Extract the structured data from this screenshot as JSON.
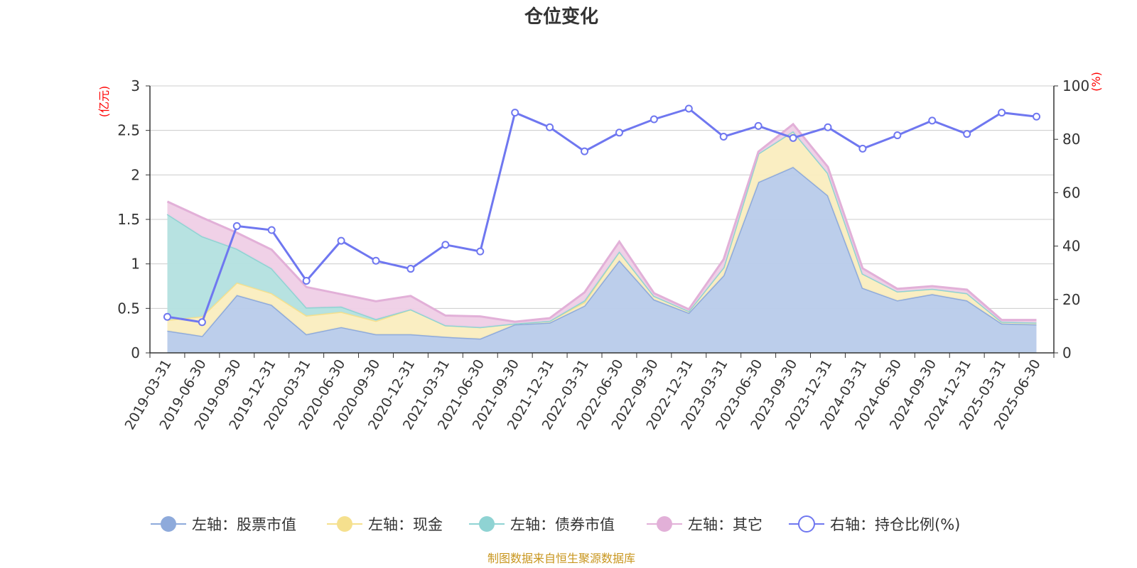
{
  "chart_data": {
    "type": "area",
    "title": "仓位变化",
    "left_unit": "(亿元)",
    "right_unit": "(%)",
    "source": "制图数据来自恒生聚源数据库",
    "categories": [
      "2019-03-31",
      "2019-06-30",
      "2019-09-30",
      "2019-12-31",
      "2020-03-31",
      "2020-06-30",
      "2020-09-30",
      "2020-12-31",
      "2021-03-31",
      "2021-06-30",
      "2021-09-30",
      "2021-12-31",
      "2022-03-31",
      "2022-06-30",
      "2022-09-30",
      "2022-12-31",
      "2023-03-31",
      "2023-06-30",
      "2023-09-30",
      "2023-12-31",
      "2024-03-31",
      "2024-06-30",
      "2024-09-30",
      "2024-12-31",
      "2025-03-31",
      "2025-06-30"
    ],
    "left_axis": {
      "min": 0,
      "max": 3,
      "ticks": [
        "0",
        "0.5",
        "1",
        "1.5",
        "2",
        "2.5",
        "3"
      ]
    },
    "right_axis": {
      "min": 0,
      "max": 100,
      "ticks": [
        "0",
        "20",
        "40",
        "60",
        "80",
        "100"
      ]
    },
    "grid": true,
    "legend_position": "bottom",
    "series": [
      {
        "name": "左轴：股票市值",
        "axis": "left",
        "kind": "area",
        "color": "#8eaadb",
        "fill": "#b8cbea",
        "values": [
          0.25,
          0.19,
          0.65,
          0.54,
          0.21,
          0.29,
          0.21,
          0.21,
          0.18,
          0.16,
          0.32,
          0.34,
          0.53,
          1.04,
          0.6,
          0.45,
          0.87,
          1.92,
          2.09,
          1.77,
          0.73,
          0.59,
          0.66,
          0.59,
          0.33,
          0.32
        ]
      },
      {
        "name": "左轴：现金",
        "axis": "left",
        "kind": "area",
        "color": "#f5e08e",
        "fill": "#faedbf",
        "values": [
          0.12,
          0.22,
          0.14,
          0.13,
          0.21,
          0.17,
          0.15,
          0.28,
          0.13,
          0.13,
          0.01,
          0.02,
          0.04,
          0.1,
          0.04,
          0.02,
          0.09,
          0.32,
          0.4,
          0.25,
          0.16,
          0.1,
          0.06,
          0.08,
          0.02,
          0.02
        ]
      },
      {
        "name": "左轴：债券市值",
        "axis": "left",
        "kind": "area",
        "color": "#8fd3d3",
        "fill": "#b3e0df",
        "values": [
          1.19,
          0.9,
          0.38,
          0.28,
          0.09,
          0.06,
          0.02,
          0,
          0,
          0,
          0,
          0,
          0.02,
          0,
          0,
          0,
          0,
          0,
          0,
          0,
          0,
          0,
          0,
          0,
          0,
          0
        ]
      },
      {
        "name": "左轴：其它",
        "axis": "left",
        "kind": "area",
        "color": "#e2b0d8",
        "fill": "#efcfe6",
        "values": [
          0.14,
          0.21,
          0.18,
          0.21,
          0.23,
          0.14,
          0.2,
          0.15,
          0.11,
          0.12,
          0.02,
          0.03,
          0.09,
          0.11,
          0.03,
          0.02,
          0.09,
          0.02,
          0.08,
          0.07,
          0.06,
          0.03,
          0.03,
          0.04,
          0.02,
          0.03
        ]
      },
      {
        "name": "右轴：持仓比例(%)",
        "axis": "right",
        "kind": "line",
        "color": "#6f77f0",
        "values": [
          13.5,
          11.5,
          47.5,
          46.0,
          27.0,
          42.0,
          34.5,
          31.5,
          40.5,
          38.0,
          90.0,
          84.5,
          75.5,
          82.5,
          87.5,
          91.5,
          81.0,
          85.0,
          80.5,
          84.5,
          76.5,
          81.5,
          87.0,
          82.0,
          90.0,
          88.5
        ]
      }
    ]
  }
}
